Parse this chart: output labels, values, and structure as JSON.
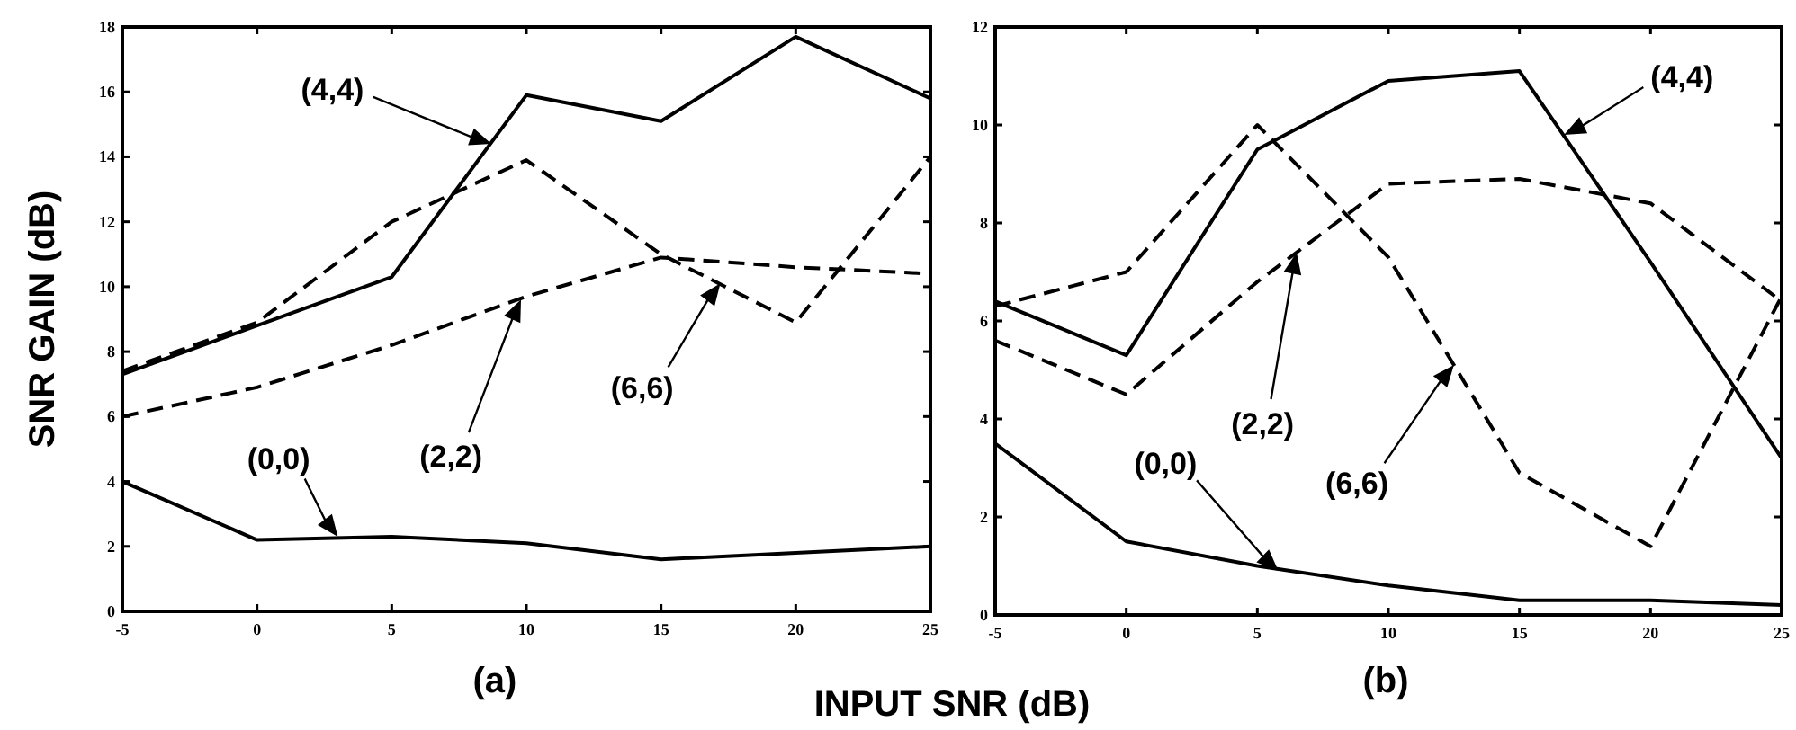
{
  "chart_data": [
    {
      "type": "line",
      "xlabel": "INPUT SNR (dB)",
      "ylabel": "SNR GAIN (dB)",
      "x": [
        -5,
        0,
        5,
        10,
        15,
        20,
        25
      ],
      "xlim": [
        -5,
        25
      ],
      "xticks": [
        -5,
        0,
        5,
        10,
        15,
        20,
        25
      ],
      "ylim": [
        0,
        18
      ],
      "yticks": [
        0,
        2,
        4,
        6,
        8,
        10,
        12,
        14,
        16,
        18
      ],
      "grid": false,
      "marker": "none",
      "series": [
        {
          "color": "#000000",
          "line_style": "solid",
          "values": [
            7.3,
            8.8,
            10.3,
            15.9,
            15.1,
            17.7,
            15.8
          ]
        },
        {
          "color": "#000000",
          "line_style": "dashed",
          "values": [
            7.4,
            8.9,
            12,
            13.9,
            11,
            8.9,
            14
          ]
        },
        {
          "color": "#000000",
          "line_style": "dashed",
          "values": [
            6,
            6.9,
            8.2,
            9.7,
            10.9,
            10.6,
            10.4
          ]
        },
        {
          "color": "#000000",
          "line_style": "solid",
          "values": [
            4,
            2.2,
            2.3,
            2.1,
            1.6,
            1.8,
            2
          ]
        }
      ],
      "annotations": [
        "(4,4)",
        "(6,6)",
        "(2,2)",
        "(0,0)",
        "(a)"
      ]
    },
    {
      "type": "line",
      "x": [
        -5,
        0,
        5,
        10,
        15,
        20,
        25
      ],
      "xlim": [
        -5,
        25
      ],
      "xticks": [
        -5,
        0,
        5,
        10,
        15,
        20,
        25
      ],
      "ylim": [
        0,
        12
      ],
      "yticks": [
        0,
        2,
        4,
        6,
        8,
        10,
        12
      ],
      "grid": false,
      "marker": "none",
      "series": [
        {
          "color": "#000000",
          "line_style": "solid",
          "values": [
            6.4,
            5.3,
            9.5,
            10.9,
            11.1,
            7.2,
            3.2
          ]
        },
        {
          "color": "#000000",
          "line_style": "dashed",
          "values": [
            6.3,
            7,
            10,
            7.3,
            2.9,
            1.4,
            6.5
          ]
        },
        {
          "color": "#000000",
          "line_style": "dashed",
          "values": [
            5.6,
            4.5,
            6.8,
            8.8,
            8.9,
            8.4,
            6.4
          ]
        },
        {
          "color": "#000000",
          "line_style": "solid",
          "values": [
            3.5,
            1.5,
            1,
            0.6,
            0.3,
            0.3,
            0.2
          ]
        }
      ],
      "annotations": [
        "(4,4)",
        "(6,6)",
        "(2,2)",
        "(0,0)",
        "(b)"
      ]
    }
  ]
}
